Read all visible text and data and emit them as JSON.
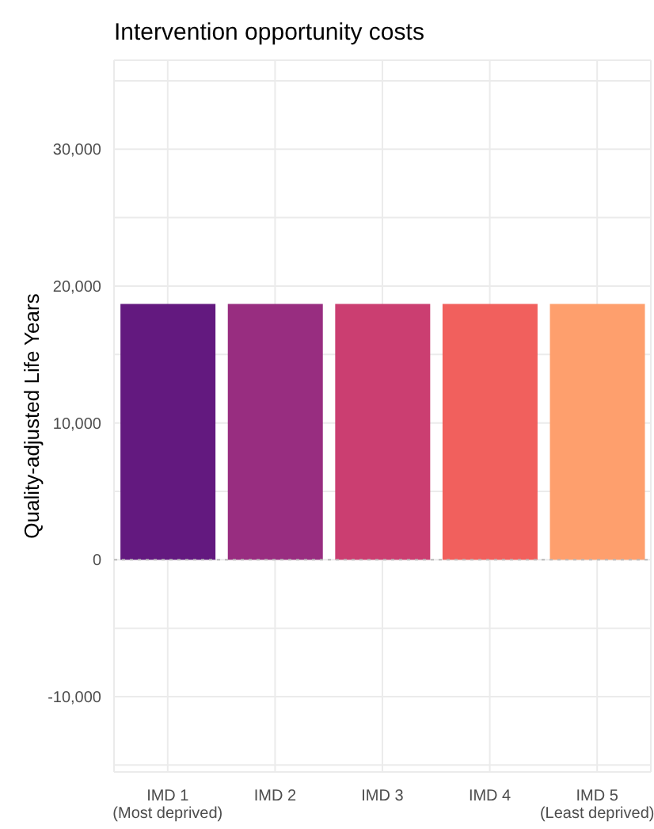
{
  "chart_data": {
    "type": "bar",
    "title": "Intervention opportunity costs",
    "ylabel": "Quality-adjusted Life Years",
    "categories": [
      "IMD 1\n(Most deprived)",
      "IMD 2",
      "IMD 3",
      "IMD 4",
      "IMD 5\n(Least deprived)"
    ],
    "values": [
      18700,
      18700,
      18700,
      18700,
      18700
    ],
    "colors": [
      "#63197f",
      "#982d80",
      "#cb3e71",
      "#f1605d",
      "#fe9f6d"
    ],
    "ylim": [
      -15500,
      36500
    ],
    "yticks": [
      {
        "value": -15000,
        "label": null
      },
      {
        "value": -10000,
        "label": "-10,000"
      },
      {
        "value": -5000,
        "label": null
      },
      0,
      {
        "value": 5000,
        "label": null
      },
      {
        "value": 10000,
        "label": "10,000"
      },
      {
        "value": 15000,
        "label": null
      },
      {
        "value": 20000,
        "label": "20,000"
      },
      {
        "value": 25000,
        "label": null
      },
      {
        "value": 30000,
        "label": "30,000"
      },
      {
        "value": 35000,
        "label": null
      }
    ],
    "ref_lines": [
      {
        "axis": "y",
        "value": 0,
        "color": "#bbbbbb",
        "line_style": "dotted"
      }
    ],
    "grid": true
  }
}
